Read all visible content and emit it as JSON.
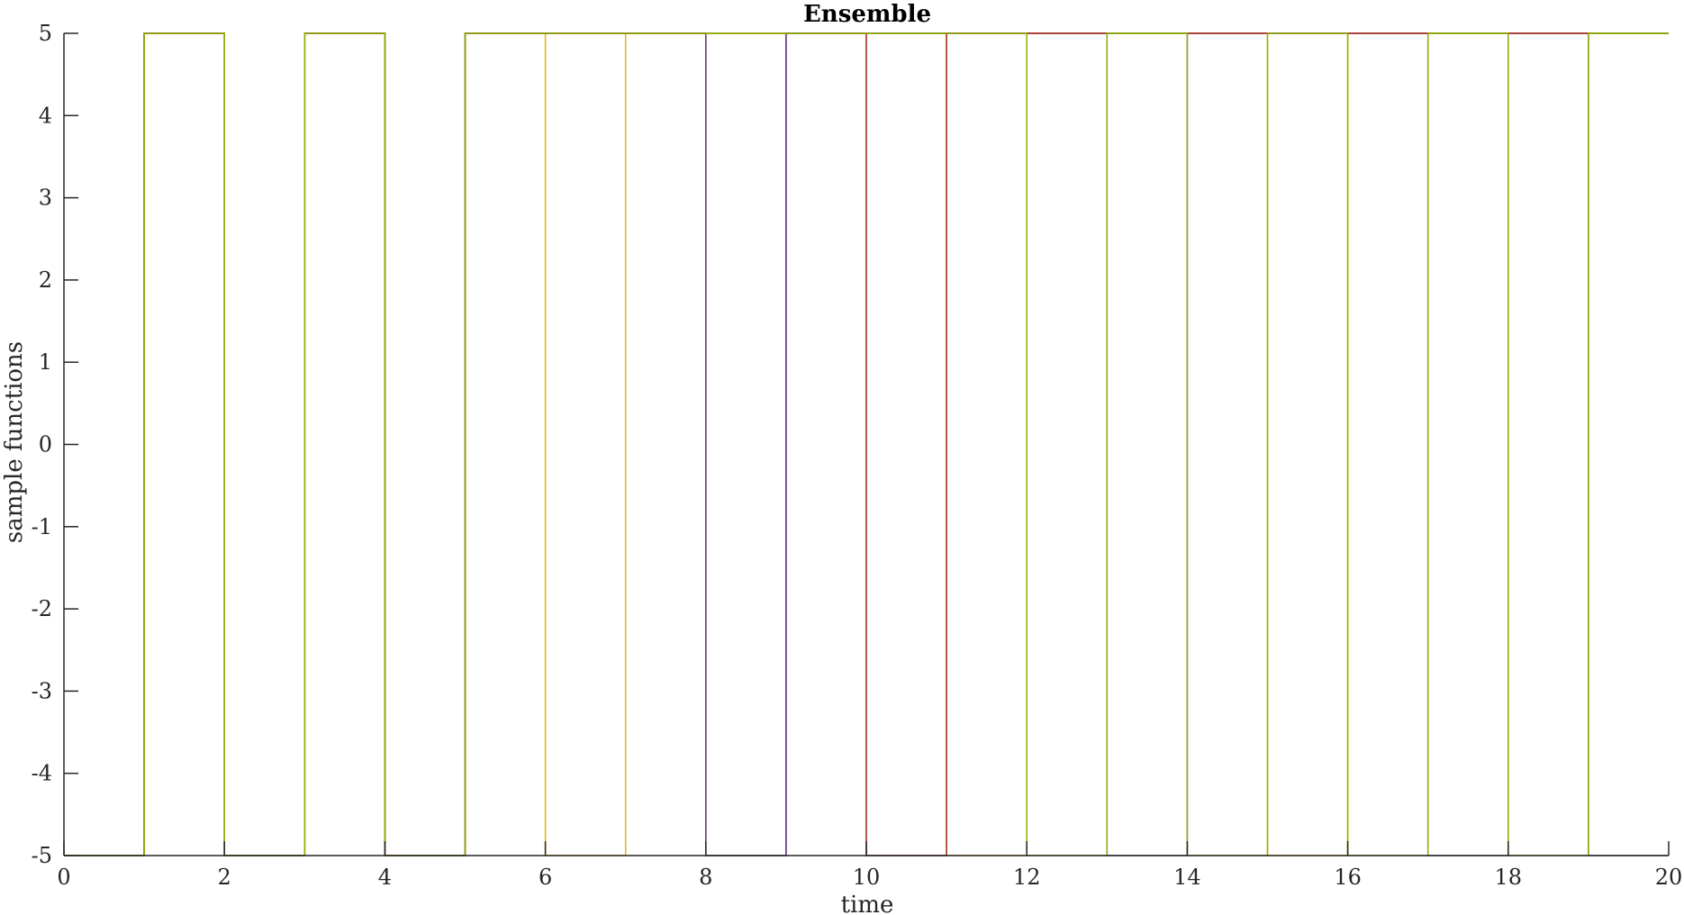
{
  "chart_data": {
    "type": "line",
    "title": "Ensemble",
    "xlabel": "time",
    "ylabel": "sample functions",
    "xlim": [
      0,
      20
    ],
    "ylim": [
      -5,
      5
    ],
    "xticks": [
      0,
      2,
      4,
      6,
      8,
      10,
      12,
      14,
      16,
      18,
      20
    ],
    "yticks": [
      -5,
      -4,
      -3,
      -2,
      -1,
      0,
      1,
      2,
      3,
      4,
      5
    ],
    "grid": false,
    "step": "post",
    "x": [
      0,
      1,
      2,
      3,
      4,
      5,
      6,
      7,
      8,
      9,
      10,
      11,
      12,
      13,
      14,
      15,
      16,
      17,
      18,
      19
    ],
    "series": [
      {
        "color": "#4daf4a",
        "values": [
          -5,
          5,
          -5,
          5,
          -5,
          5,
          5,
          5,
          5,
          5,
          5,
          5,
          5,
          5,
          5,
          5,
          5,
          5,
          5,
          5
        ]
      },
      {
        "color": "#e6b400",
        "values": [
          -5,
          5,
          -5,
          5,
          -5,
          5,
          -5,
          5,
          5,
          5,
          5,
          -5,
          5,
          5,
          5,
          -5,
          5,
          5,
          5,
          5
        ]
      },
      {
        "color": "#1b7f5f",
        "values": [
          -5,
          5,
          -5,
          5,
          -5,
          5,
          5,
          5,
          -5,
          5,
          -5,
          5,
          5,
          5,
          5,
          5,
          5,
          5,
          5,
          5
        ]
      },
      {
        "color": "#7b2d8e",
        "values": [
          -5,
          5,
          -5,
          5,
          -5,
          5,
          5,
          5,
          -5,
          5,
          5,
          5,
          5,
          -5,
          5,
          5,
          5,
          -5,
          5,
          -5
        ]
      },
      {
        "color": "#c0392b",
        "values": [
          -5,
          5,
          -5,
          5,
          -5,
          5,
          5,
          5,
          5,
          5,
          -5,
          5,
          5,
          5,
          5,
          5,
          5,
          5,
          5,
          5
        ]
      },
      {
        "color": "#8db600",
        "values": [
          -5,
          5,
          -5,
          5,
          -5,
          5,
          5,
          5,
          5,
          5,
          5,
          5,
          -5,
          5,
          -5,
          5,
          -5,
          5,
          -5,
          5
        ]
      }
    ]
  }
}
